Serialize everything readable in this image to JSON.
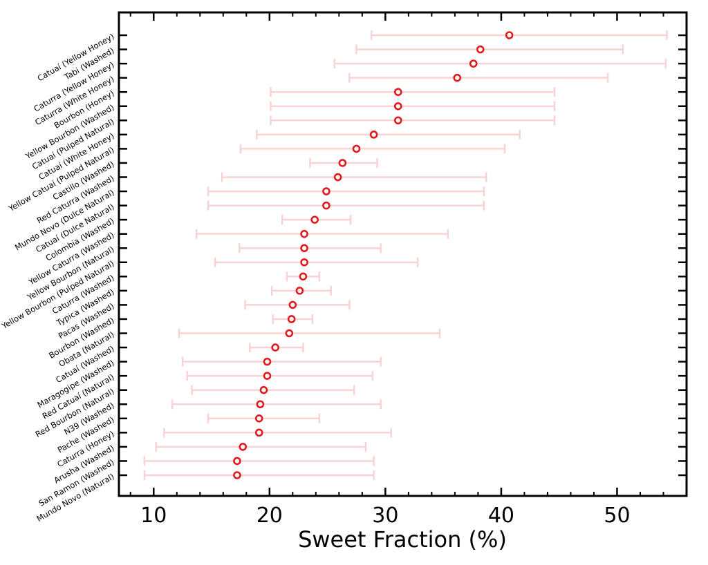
{
  "chart_data": {
    "type": "scatter",
    "orientation": "horizontal-errorbar",
    "title": "",
    "xlabel": "Sweet Fraction (%)",
    "ylabel": "",
    "xlim": [
      7,
      56
    ],
    "xticks": [
      10,
      20,
      30,
      40,
      50
    ],
    "grid": false,
    "colors": {
      "point": "#e31a1c",
      "errorbar": "#f9d3d3",
      "axis": "#000000"
    },
    "categories": [
      "Catuaí (Yellow Honey)",
      "Tabi (Washed)",
      "Caturra (Yellow Honey)",
      "Caturra (White Honey)",
      "Bourbon (Honey)",
      "Yellow Bourbon (Washed)",
      "Catuaí (Pulped Natural)",
      "Catuaí (White Honey)",
      "Yellow Catuaí (Pulped Natural)",
      "Castillo (Washed)",
      "Red Caturra (Washed)",
      "Mundo Novo (Dulce Natural)",
      "Catuaí (Dulce Natural)",
      "Colombia (Washed)",
      "Yellow Caturra (Washed)",
      "Yellow Bourbon (Natural)",
      "Yellow Bourbon (Pulped Natural)",
      "Caturra (Washed)",
      "Typica (Washed)",
      "Pacas (Washed)",
      "Bourbon (Washed)",
      "Obata (Natural)",
      "Catuaí (Washed)",
      "Maragogipe (Washed)",
      "Red Catuaí (Natural)",
      "Red Bourbon (Natural)",
      "N39 (Washed)",
      "Pache (Washed)",
      "Caturra (Honey)",
      "Arusha (Washed)",
      "San Ramon (Washed)",
      "Mundo Novo (Natural)"
    ],
    "values": [
      40.7,
      38.2,
      37.6,
      36.2,
      31.1,
      31.1,
      31.1,
      29.0,
      27.5,
      26.3,
      25.9,
      24.9,
      24.9,
      23.9,
      23.0,
      23.0,
      23.0,
      22.9,
      22.6,
      22.0,
      21.9,
      21.7,
      20.5,
      19.8,
      19.8,
      19.5,
      19.2,
      19.1,
      19.1,
      17.7,
      17.2,
      17.2
    ],
    "lower": [
      28.8,
      27.5,
      25.6,
      26.9,
      20.1,
      20.1,
      20.1,
      18.9,
      17.5,
      23.5,
      15.9,
      14.7,
      14.7,
      21.1,
      13.7,
      17.4,
      15.3,
      21.5,
      20.2,
      17.9,
      20.3,
      12.2,
      18.3,
      12.5,
      12.9,
      13.3,
      11.6,
      14.7,
      10.9,
      10.2,
      9.2,
      9.2
    ],
    "upper": [
      54.3,
      50.5,
      54.2,
      49.2,
      44.6,
      44.6,
      44.6,
      41.6,
      40.3,
      29.3,
      38.7,
      38.5,
      38.5,
      27.0,
      35.4,
      29.6,
      32.8,
      24.3,
      25.3,
      26.9,
      23.7,
      34.7,
      22.9,
      29.6,
      28.9,
      27.3,
      29.6,
      24.3,
      30.5,
      28.3,
      29.0,
      29.0
    ]
  }
}
